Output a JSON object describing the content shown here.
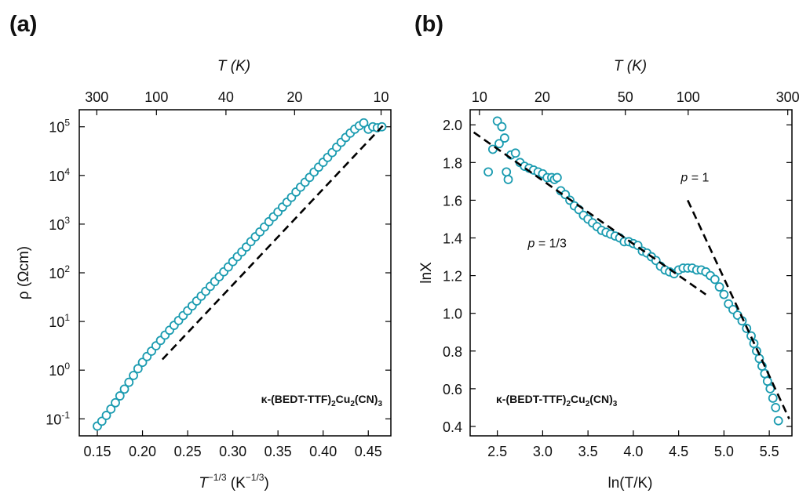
{
  "marker_color": "#1a9bb0",
  "fit_color": "#000000",
  "chart_data": [
    {
      "type": "scatter",
      "panel_label": "(a)",
      "xlabel": "T −1/3 (K−1/3)",
      "xlabel_parts": {
        "base": "T",
        "sup": "−1/3",
        "mid": " (K",
        "sup2": "−1/3",
        "end": ")"
      },
      "ylabel": "ρ (Ωcm)",
      "top_xlabel": "T (K)",
      "xlim": [
        0.13,
        0.475
      ],
      "ylim_log10": [
        -1.35,
        5.35
      ],
      "yscale": "log",
      "x_ticks": [
        {
          "value": 0.15,
          "label": "0.15"
        },
        {
          "value": 0.2,
          "label": "0.20"
        },
        {
          "value": 0.25,
          "label": "0.25"
        },
        {
          "value": 0.3,
          "label": "0.30"
        },
        {
          "value": 0.35,
          "label": "0.35"
        },
        {
          "value": 0.4,
          "label": "0.40"
        },
        {
          "value": 0.45,
          "label": "0.45"
        }
      ],
      "y_ticks": [
        {
          "exp": -1,
          "label_base": "10",
          "label_exp": "-1"
        },
        {
          "exp": 0,
          "label_base": "10",
          "label_exp": "0"
        },
        {
          "exp": 1,
          "label_base": "10",
          "label_exp": "1"
        },
        {
          "exp": 2,
          "label_base": "10",
          "label_exp": "2"
        },
        {
          "exp": 3,
          "label_base": "10",
          "label_exp": "3"
        },
        {
          "exp": 4,
          "label_base": "10",
          "label_exp": "4"
        },
        {
          "exp": 5,
          "label_base": "10",
          "label_exp": "5"
        }
      ],
      "top_ticks": [
        {
          "T": 300,
          "label": "300"
        },
        {
          "T": 100,
          "label": "100"
        },
        {
          "T": 40,
          "label": "40"
        },
        {
          "T": 20,
          "label": "20"
        },
        {
          "T": 10,
          "label": "10"
        }
      ],
      "series": [
        {
          "x": [
            0.15,
            0.155,
            0.16,
            0.165,
            0.17,
            0.175,
            0.18,
            0.185,
            0.19,
            0.195,
            0.2,
            0.205,
            0.21,
            0.215,
            0.22,
            0.225,
            0.23,
            0.235,
            0.24,
            0.245,
            0.25,
            0.255,
            0.26,
            0.265,
            0.27,
            0.275,
            0.28,
            0.285,
            0.29,
            0.295,
            0.3,
            0.305,
            0.31,
            0.315,
            0.32,
            0.325,
            0.33,
            0.335,
            0.34,
            0.345,
            0.35,
            0.355,
            0.36,
            0.365,
            0.37,
            0.375,
            0.38,
            0.385,
            0.39,
            0.395,
            0.4,
            0.405,
            0.41,
            0.415,
            0.42,
            0.425,
            0.43,
            0.435,
            0.44,
            0.445,
            0.45,
            0.455,
            0.46,
            0.465
          ],
          "log10_y": [
            -1.15,
            -1.05,
            -0.93,
            -0.8,
            -0.67,
            -0.53,
            -0.39,
            -0.25,
            -0.11,
            0.03,
            0.16,
            0.28,
            0.39,
            0.5,
            0.61,
            0.72,
            0.82,
            0.92,
            1.02,
            1.12,
            1.22,
            1.32,
            1.42,
            1.52,
            1.62,
            1.72,
            1.82,
            1.92,
            2.02,
            2.12,
            2.23,
            2.33,
            2.43,
            2.53,
            2.64,
            2.74,
            2.84,
            2.94,
            3.05,
            3.15,
            3.25,
            3.35,
            3.45,
            3.55,
            3.66,
            3.76,
            3.86,
            3.96,
            4.07,
            4.17,
            4.27,
            4.37,
            4.47,
            4.58,
            4.68,
            4.78,
            4.87,
            4.95,
            5.02,
            5.08,
            4.95,
            5.0,
            4.98,
            5.0
          ]
        }
      ],
      "fit": {
        "x": [
          0.222,
          0.466
        ],
        "log10_y": [
          0.22,
          5.02
        ]
      },
      "annotation": {
        "prefix": "κ-(BEDT-TTF)",
        "sub1": "2",
        "mid": "Cu",
        "sub2": "2",
        "suffix": "(CN)",
        "sub3": "3"
      }
    },
    {
      "type": "scatter",
      "panel_label": "(b)",
      "xlabel": "ln(T/K)",
      "ylabel": "lnX",
      "top_xlabel": "T (K)",
      "xlim": [
        2.2,
        5.75
      ],
      "ylim": [
        0.35,
        2.08
      ],
      "x_ticks": [
        {
          "value": 2.5,
          "label": "2.5"
        },
        {
          "value": 3.0,
          "label": "3.0"
        },
        {
          "value": 3.5,
          "label": "3.5"
        },
        {
          "value": 4.0,
          "label": "4.0"
        },
        {
          "value": 4.5,
          "label": "4.5"
        },
        {
          "value": 5.0,
          "label": "5.0"
        },
        {
          "value": 5.5,
          "label": "5.5"
        }
      ],
      "y_ticks": [
        {
          "value": 0.4,
          "label": "0.4"
        },
        {
          "value": 0.6,
          "label": "0.6"
        },
        {
          "value": 0.8,
          "label": "0.8"
        },
        {
          "value": 1.0,
          "label": "1.0"
        },
        {
          "value": 1.2,
          "label": "1.2"
        },
        {
          "value": 1.4,
          "label": "1.4"
        },
        {
          "value": 1.6,
          "label": "1.6"
        },
        {
          "value": 1.8,
          "label": "1.8"
        },
        {
          "value": 2.0,
          "label": "2.0"
        }
      ],
      "top_ticks": [
        {
          "T": 10,
          "label": "10"
        },
        {
          "T": 20,
          "label": "20"
        },
        {
          "T": 50,
          "label": "50"
        },
        {
          "T": 100,
          "label": "100"
        },
        {
          "T": 300,
          "label": "300"
        }
      ],
      "series": [
        {
          "x": [
            2.4,
            2.45,
            2.5,
            2.52,
            2.55,
            2.58,
            2.6,
            2.62,
            2.65,
            2.7,
            2.75,
            2.8,
            2.85,
            2.9,
            2.95,
            3.0,
            3.05,
            3.1,
            3.13,
            3.16,
            3.2,
            3.25,
            3.3,
            3.35,
            3.4,
            3.45,
            3.5,
            3.55,
            3.6,
            3.65,
            3.7,
            3.75,
            3.8,
            3.85,
            3.9,
            3.95,
            4.0,
            4.05,
            4.1,
            4.15,
            4.2,
            4.25,
            4.3,
            4.35,
            4.4,
            4.45,
            4.5,
            4.55,
            4.6,
            4.65,
            4.7,
            4.75,
            4.8,
            4.85,
            4.9,
            4.95,
            5.0,
            5.05,
            5.1,
            5.15,
            5.2,
            5.25,
            5.3,
            5.33,
            5.36,
            5.39,
            5.42,
            5.45,
            5.48,
            5.51,
            5.54,
            5.57,
            5.6
          ],
          "y": [
            1.75,
            1.87,
            2.02,
            1.9,
            1.99,
            1.93,
            1.75,
            1.71,
            1.84,
            1.85,
            1.8,
            1.78,
            1.77,
            1.76,
            1.75,
            1.74,
            1.72,
            1.72,
            1.71,
            1.72,
            1.65,
            1.63,
            1.6,
            1.57,
            1.55,
            1.52,
            1.5,
            1.48,
            1.46,
            1.44,
            1.43,
            1.42,
            1.41,
            1.4,
            1.38,
            1.38,
            1.37,
            1.36,
            1.33,
            1.32,
            1.3,
            1.28,
            1.25,
            1.23,
            1.22,
            1.21,
            1.23,
            1.24,
            1.24,
            1.24,
            1.23,
            1.23,
            1.22,
            1.2,
            1.18,
            1.14,
            1.1,
            1.05,
            1.02,
            0.99,
            0.96,
            0.92,
            0.88,
            0.84,
            0.8,
            0.76,
            0.72,
            0.68,
            0.64,
            0.6,
            0.55,
            0.5,
            0.43
          ]
        }
      ],
      "fits": [
        {
          "name": "p = 1/3",
          "x": [
            2.24,
            4.8
          ],
          "y": [
            1.96,
            1.1
          ]
        },
        {
          "name": "p = 1",
          "x": [
            4.6,
            5.72
          ],
          "y": [
            1.6,
            0.44
          ]
        }
      ],
      "annotations": [
        {
          "prefix": "p",
          "text": " = 1",
          "anchor_x": 4.68,
          "anchor_y": 1.7
        },
        {
          "prefix": "p",
          "text": " = 1/3",
          "anchor_x": 3.05,
          "anchor_y": 1.35
        }
      ],
      "compound": {
        "prefix": "κ-(BEDT-TTF)",
        "sub1": "2",
        "mid": "Cu",
        "sub2": "2",
        "suffix": "(CN)",
        "sub3": "3"
      }
    }
  ]
}
